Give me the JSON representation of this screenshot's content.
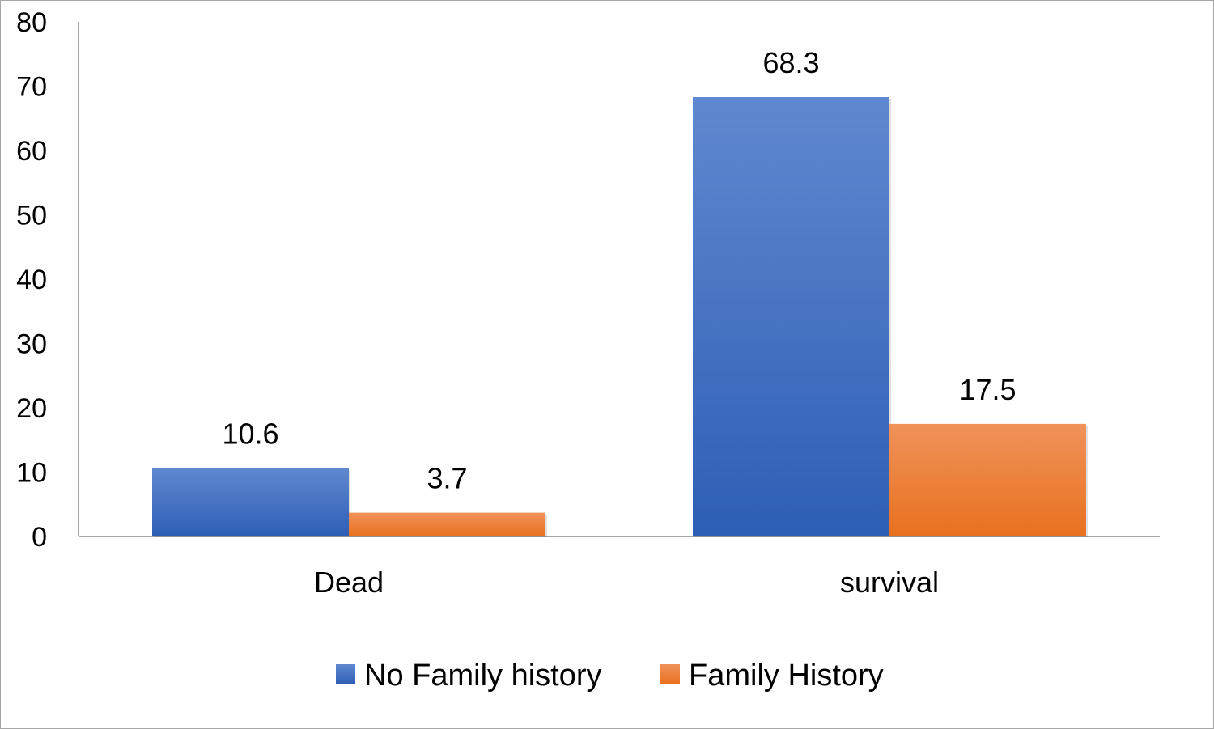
{
  "chart_data": {
    "type": "bar",
    "title": "",
    "xlabel": "",
    "ylabel": "",
    "categories": [
      "Dead",
      "survival"
    ],
    "series": [
      {
        "name": "No Family history",
        "values": [
          10.6,
          68.3
        ],
        "labels": [
          "10.6",
          "68.3"
        ],
        "color": "#4472C4",
        "color_top": "#6088D0",
        "color_bottom": "#2E5EB5"
      },
      {
        "name": "Family History",
        "values": [
          3.7,
          17.5
        ],
        "labels": [
          "3.7",
          "17.5"
        ],
        "color": "#ED7D31",
        "color_top": "#F0925A",
        "color_bottom": "#E8711F"
      }
    ],
    "ylim": [
      0,
      80
    ],
    "yticks": [
      0,
      10,
      20,
      30,
      40,
      50,
      60,
      70,
      80
    ],
    "ytick_labels": [
      "0",
      "10",
      "20",
      "30",
      "40",
      "50",
      "60",
      "70",
      "80"
    ],
    "grid": false,
    "legend_position": "bottom",
    "axis_color": "#a6a6a6"
  }
}
